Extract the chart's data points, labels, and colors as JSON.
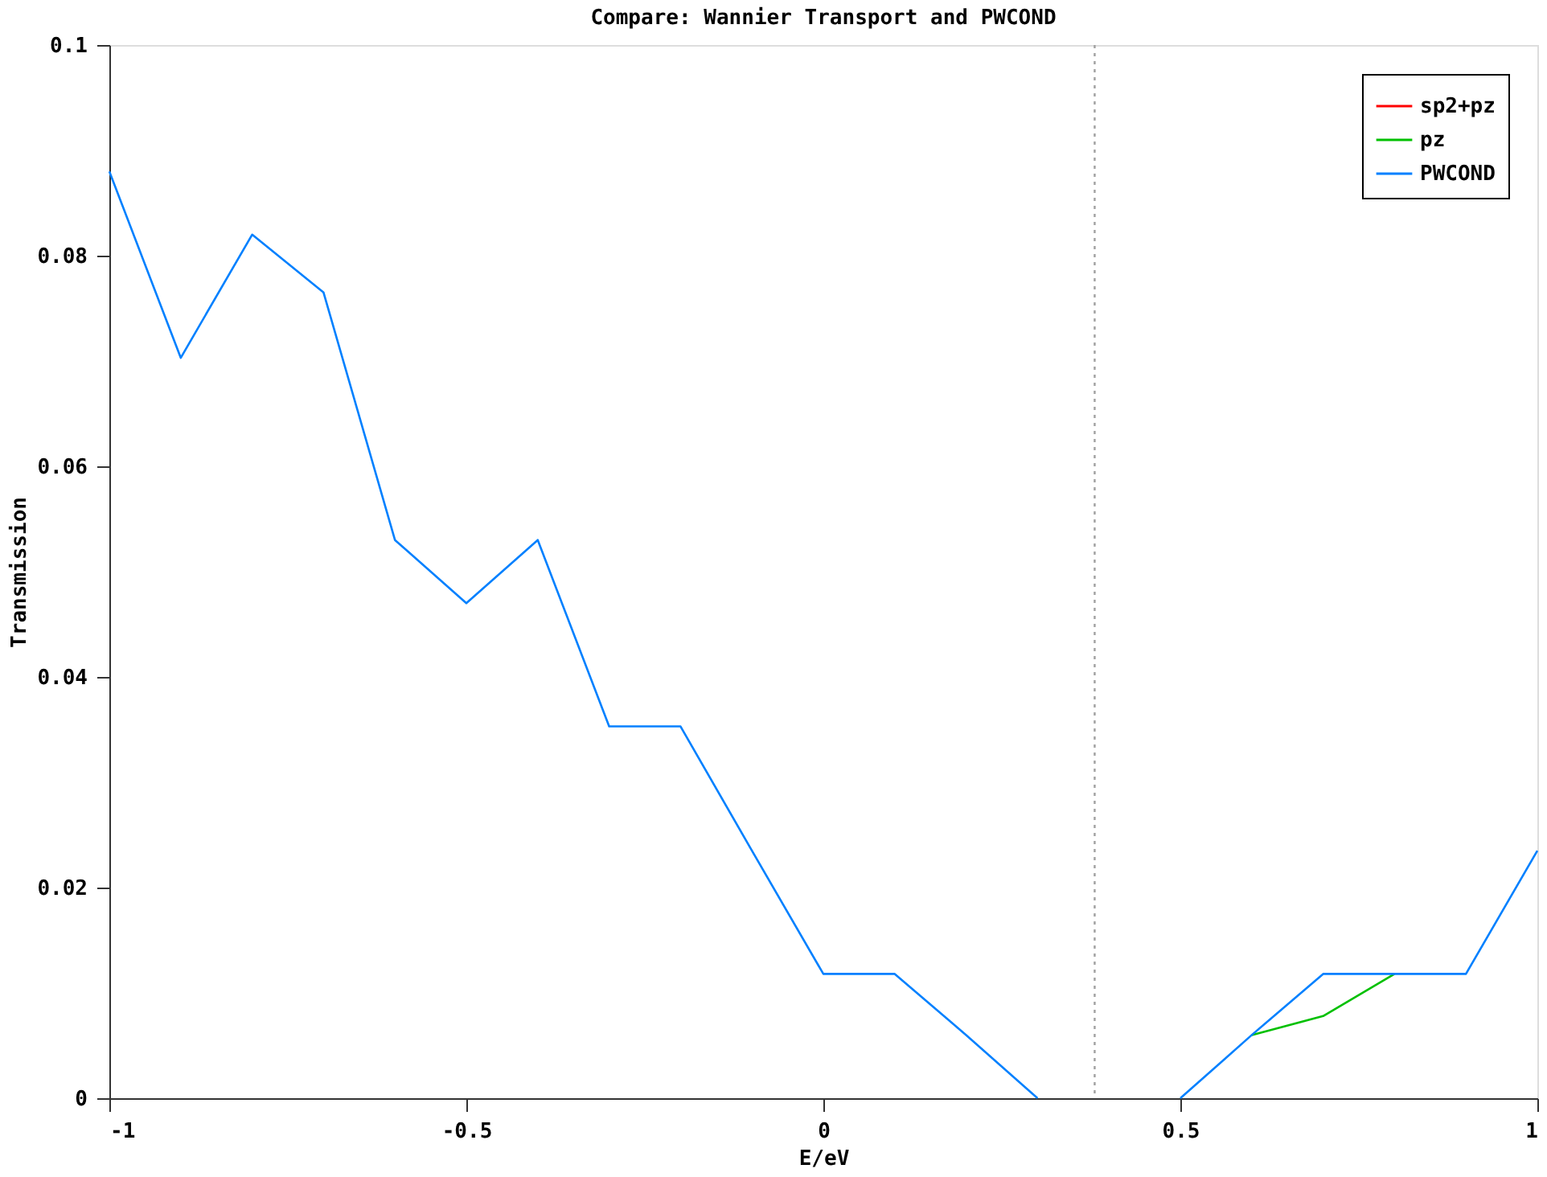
{
  "chart_data": {
    "type": "line",
    "title": "Compare: Wannier Transport and PWCOND",
    "xlabel": "E/eV",
    "ylabel": "Transmission",
    "x": [
      -1,
      -0.9,
      -0.8,
      -0.7,
      -0.6,
      -0.5,
      -0.4,
      -0.3,
      -0.2,
      -0.1,
      0,
      0.1,
      0.2,
      0.3,
      0.4,
      0.5,
      0.6,
      0.7,
      0.8,
      0.9,
      1
    ],
    "series": [
      {
        "name": "sp2+pz",
        "color": "#ff0000",
        "values": [
          null,
          null,
          null,
          null,
          null,
          null,
          null,
          null,
          null,
          null,
          null,
          null,
          null,
          null,
          null,
          null,
          null,
          null,
          null,
          null,
          null
        ]
      },
      {
        "name": "pz",
        "color": "#00c000",
        "values": [
          null,
          null,
          null,
          null,
          null,
          null,
          null,
          null,
          null,
          null,
          null,
          null,
          null,
          null,
          null,
          null,
          0.006,
          0.0078,
          0.0118,
          null,
          null
        ]
      },
      {
        "name": "PWCOND",
        "color": "#0080ff",
        "values": [
          0.088,
          0.0703,
          0.082,
          0.0765,
          0.053,
          0.047,
          0.053,
          0.0353,
          0.0353,
          0.0235,
          0.0118,
          0.0118,
          0.006,
          0,
          null,
          0,
          0.006,
          0.0118,
          0.0118,
          0.0118,
          0.0235
        ]
      }
    ],
    "xlim": [
      -1,
      1
    ],
    "xticks": [
      -1,
      -0.5,
      0,
      0.5,
      1
    ],
    "ylim": [
      0,
      0.1
    ],
    "yticks": [
      0,
      0.02,
      0.04,
      0.06,
      0.08,
      0.1
    ],
    "ref_lines": [
      {
        "axis": "x",
        "value": 0.38,
        "color": "#a0a0a0",
        "line_style": "dotted"
      }
    ],
    "legend": "top right",
    "grid": false
  }
}
